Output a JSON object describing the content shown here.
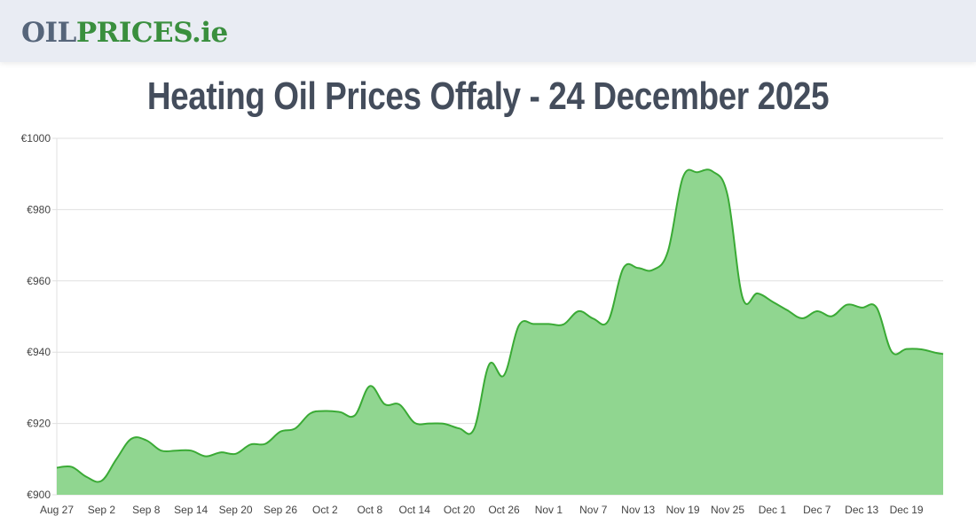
{
  "header": {
    "logo_part1": "OIL",
    "logo_part2": "PRICES.ie"
  },
  "page": {
    "title": "Heating Oil Prices Offaly - 24 December 2025"
  },
  "colors": {
    "line": "#3aaa35",
    "fill": "#90d690",
    "grid": "#e0e0e0",
    "logo_gray": "#56657a",
    "logo_green": "#3a8f3e",
    "title": "#444d5c"
  },
  "chart_data": {
    "type": "area",
    "title": "Heating Oil Prices Offaly - 24 December 2025",
    "xlabel": "",
    "ylabel": "",
    "ylim": [
      900,
      1000
    ],
    "y_ticks": [
      "€900",
      "€920",
      "€940",
      "€960",
      "€980",
      "€1000"
    ],
    "y_tick_values": [
      900,
      920,
      940,
      960,
      980,
      1000
    ],
    "x_tick_labels": [
      "Aug 27",
      "Sep 2",
      "Sep 8",
      "Sep 14",
      "Sep 20",
      "Sep 26",
      "Oct 2",
      "Oct 8",
      "Oct 14",
      "Oct 20",
      "Oct 26",
      "Nov 1",
      "Nov 7",
      "Nov 13",
      "Nov 19",
      "Nov 25",
      "Dec 1",
      "Dec 7",
      "Dec 13",
      "Dec 19"
    ],
    "grid": true,
    "legend": "none",
    "series": [
      {
        "name": "Heating Oil Price (€)",
        "x": [
          "Aug 27",
          "Aug 29",
          "Aug 31",
          "Sep 2",
          "Sep 4",
          "Sep 6",
          "Sep 8",
          "Sep 10",
          "Sep 12",
          "Sep 14",
          "Sep 16",
          "Sep 18",
          "Sep 20",
          "Sep 22",
          "Sep 24",
          "Sep 26",
          "Sep 28",
          "Sep 30",
          "Oct 2",
          "Oct 4",
          "Oct 6",
          "Oct 8",
          "Oct 10",
          "Oct 12",
          "Oct 14",
          "Oct 16",
          "Oct 18",
          "Oct 20",
          "Oct 22",
          "Oct 24",
          "Oct 26",
          "Oct 28",
          "Oct 30",
          "Nov 1",
          "Nov 3",
          "Nov 5",
          "Nov 7",
          "Nov 9",
          "Nov 11",
          "Nov 13",
          "Nov 15",
          "Nov 17",
          "Nov 19",
          "Nov 21",
          "Nov 23",
          "Nov 25",
          "Nov 27",
          "Nov 29",
          "Dec 1",
          "Dec 3",
          "Dec 5",
          "Dec 7",
          "Dec 9",
          "Dec 11",
          "Dec 13",
          "Dec 15",
          "Dec 17",
          "Dec 19",
          "Dec 21",
          "Dec 23",
          "Dec 24"
        ],
        "values": [
          907.6,
          907.8,
          905.0,
          903.9,
          910.0,
          915.7,
          915.3,
          912.4,
          912.4,
          912.4,
          910.8,
          911.9,
          911.5,
          914.1,
          914.3,
          917.7,
          918.6,
          922.8,
          923.5,
          923.2,
          922.3,
          930.5,
          925.4,
          925.3,
          920.2,
          920.0,
          919.9,
          918.6,
          918.5,
          936.5,
          933.5,
          947.5,
          947.9,
          947.9,
          947.8,
          951.5,
          949.4,
          948.8,
          963.5,
          963.6,
          963.1,
          968.3,
          989.0,
          990.5,
          990.7,
          984.0,
          955.4,
          956.5,
          954.2,
          951.8,
          949.5,
          951.5,
          950.1,
          953.3,
          952.5,
          952.5,
          940.2,
          940.9,
          940.8,
          939.8,
          939.5
        ]
      }
    ]
  }
}
